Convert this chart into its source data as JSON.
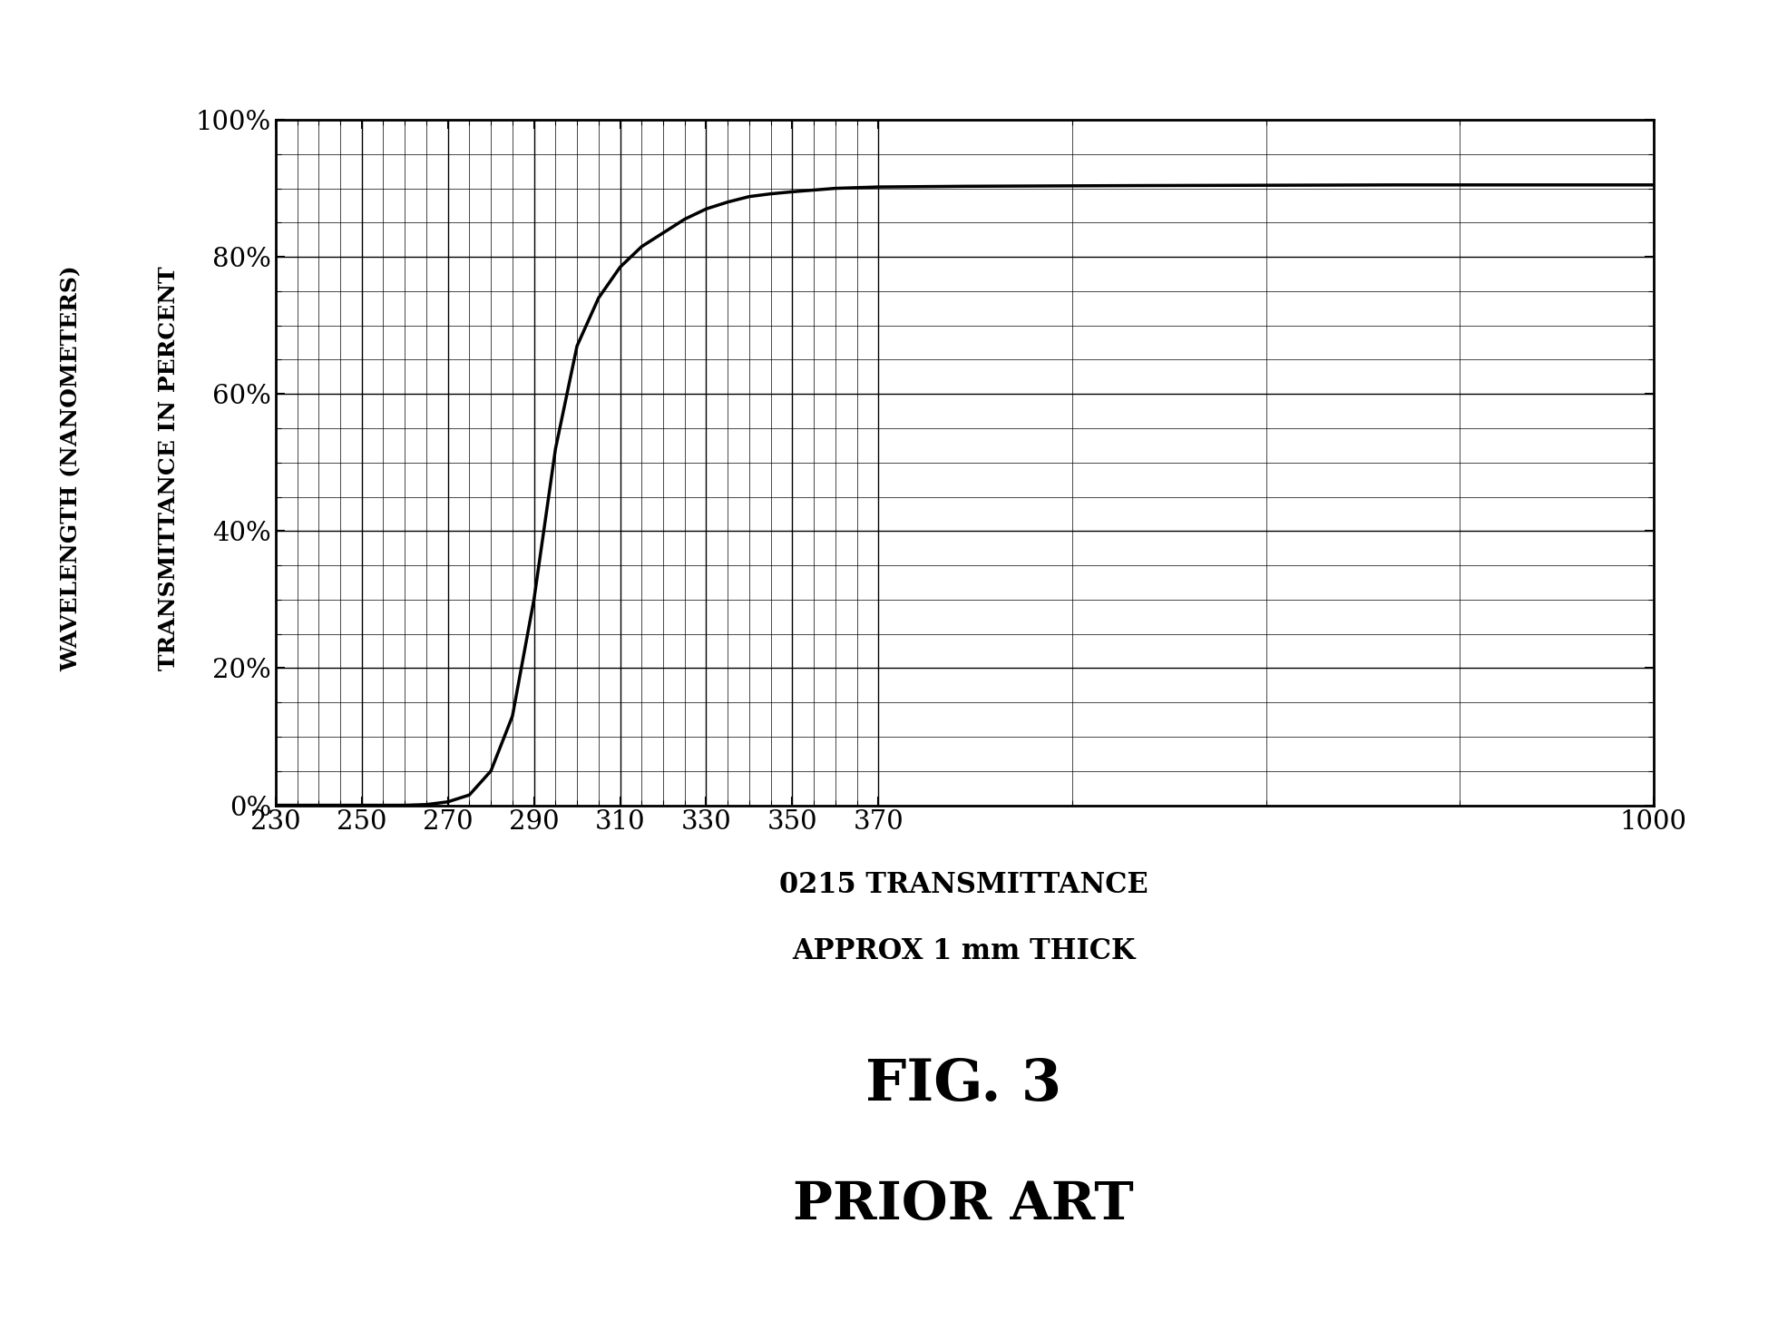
{
  "title_line1": "0215 TRANSMITTANCE",
  "title_line2": "APPROX 1 mm THICK",
  "fig_label": "FIG. 3",
  "fig_sublabel": "PRIOR ART",
  "ylabel_line1": "WAVELENGTH (NANOMETERS)",
  "ylabel_line2": "TRANSMITTANCE IN PERCENT",
  "xtick_labels": [
    "230",
    "250",
    "270",
    "290",
    "310",
    "330",
    "350",
    "370",
    "",
    "",
    "",
    "",
    "",
    "",
    "",
    "",
    "1000"
  ],
  "xtick_positions": [
    0,
    1,
    2,
    3,
    4,
    5,
    6,
    7,
    16
  ],
  "ytick_labels": [
    "0%",
    "20%",
    "40%",
    "60%",
    "80%",
    "100%"
  ],
  "ytick_positions": [
    0,
    20,
    40,
    60,
    80,
    100
  ],
  "background_color": "#ffffff",
  "curve_color": "#000000",
  "grid_color": "#000000",
  "curve_x_mapped": [
    0,
    0.5,
    1.0,
    1.5,
    1.75,
    2.0,
    2.25,
    2.5,
    2.75,
    3.0,
    3.25,
    3.5,
    3.75,
    4.0,
    4.25,
    4.5,
    4.75,
    5.0,
    5.25,
    5.5,
    5.75,
    6.0,
    6.5,
    7.0,
    8.0,
    10.0,
    13.0,
    16.0
  ],
  "curve_y": [
    0,
    0,
    0,
    0,
    0.1,
    0.5,
    1.5,
    5.0,
    13.0,
    30.0,
    52.0,
    67.0,
    74.0,
    78.5,
    81.5,
    83.5,
    85.5,
    87.0,
    88.0,
    88.8,
    89.2,
    89.5,
    90.0,
    90.2,
    90.3,
    90.4,
    90.5,
    90.5
  ],
  "x_major_ticks": [
    0,
    1,
    2,
    3,
    4,
    5,
    6,
    7,
    16
  ],
  "x_major_labels": [
    "230",
    "250",
    "270",
    "290",
    "310",
    "330",
    "350",
    "370",
    "1000"
  ],
  "x_minor_per_major": 4,
  "y_minor_per_major": 4
}
